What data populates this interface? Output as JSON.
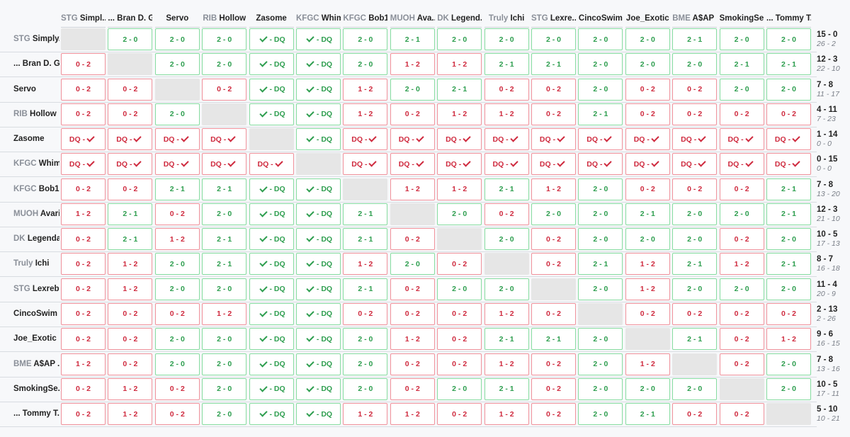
{
  "players": [
    {
      "tag": "STG",
      "name": "Simply...",
      "col_tag": "STG",
      "col_name": "Simpl...",
      "record": "15 - 0",
      "games": "26 - 2"
    },
    {
      "tag": "",
      "name": "... Bran D. G...",
      "col_tag": "",
      "col_name": "... Bran D. G...",
      "record": "12 - 3",
      "games": "22 - 10"
    },
    {
      "tag": "",
      "name": "Servo",
      "col_tag": "",
      "col_name": "Servo",
      "record": "7 - 8",
      "games": "11 - 17"
    },
    {
      "tag": "RIB",
      "name": "Hollow",
      "col_tag": "RIB",
      "col_name": "Hollow",
      "record": "4 - 11",
      "games": "7 - 23"
    },
    {
      "tag": "",
      "name": "Zasome",
      "col_tag": "",
      "col_name": "Zasome",
      "record": "1 - 14",
      "games": "0 - 0"
    },
    {
      "tag": "KFGC",
      "name": "Whim",
      "col_tag": "KFGC",
      "col_name": "Whim",
      "record": "0 - 15",
      "games": "0 - 0"
    },
    {
      "tag": "KFGC",
      "name": "Bob1...",
      "col_tag": "KFGC",
      "col_name": "Bob1...",
      "record": "7 - 8",
      "games": "13 - 20"
    },
    {
      "tag": "MUOH",
      "name": "Avaris",
      "col_tag": "MUOH",
      "col_name": "Ava...",
      "record": "12 - 3",
      "games": "21 - 10"
    },
    {
      "tag": "DK",
      "name": "Legenda...",
      "col_tag": "DK",
      "col_name": "Legend...",
      "record": "10 - 5",
      "games": "17 - 13"
    },
    {
      "tag": "Truly",
      "name": "Ichi",
      "col_tag": "Truly",
      "col_name": "Ichi",
      "record": "8 - 7",
      "games": "16 - 18"
    },
    {
      "tag": "STG",
      "name": "Lexreb...",
      "col_tag": "STG",
      "col_name": "Lexre...",
      "record": "11 - 4",
      "games": "20 - 9"
    },
    {
      "tag": "",
      "name": "CincoSwim",
      "col_tag": "",
      "col_name": "CincoSwim",
      "record": "2 - 13",
      "games": "2 - 26"
    },
    {
      "tag": "",
      "name": "Joe_Exotic",
      "col_tag": "",
      "col_name": "Joe_Exotic",
      "record": "9 - 6",
      "games": "16 - 15"
    },
    {
      "tag": "BME",
      "name": "A$AP ...",
      "col_tag": "BME",
      "col_name": "A$AP ...",
      "record": "7 - 8",
      "games": "13 - 16"
    },
    {
      "tag": "",
      "name": "SmokingSe...",
      "col_tag": "",
      "col_name": "SmokingSe...",
      "record": "10 - 5",
      "games": "17 - 11"
    },
    {
      "tag": "",
      "name": "... Tommy T...",
      "col_tag": "",
      "col_name": "... Tommy T...",
      "record": "5 - 10",
      "games": "10 - 21"
    }
  ],
  "results": [
    [
      "-",
      "2 - 0",
      "2 - 0",
      "2 - 0",
      "W-DQ",
      "W-DQ",
      "2 - 0",
      "2 - 1",
      "2 - 0",
      "2 - 0",
      "2 - 0",
      "2 - 0",
      "2 - 0",
      "2 - 1",
      "2 - 0",
      "2 - 0"
    ],
    [
      "0 - 2",
      "-",
      "2 - 0",
      "2 - 0",
      "W-DQ",
      "W-DQ",
      "2 - 0",
      "1 - 2",
      "1 - 2",
      "2 - 1",
      "2 - 1",
      "2 - 0",
      "2 - 0",
      "2 - 0",
      "2 - 1",
      "2 - 1"
    ],
    [
      "0 - 2",
      "0 - 2",
      "-",
      "0 - 2",
      "W-DQ",
      "W-DQ",
      "1 - 2",
      "2 - 0",
      "2 - 1",
      "0 - 2",
      "0 - 2",
      "2 - 0",
      "0 - 2",
      "0 - 2",
      "2 - 0",
      "2 - 0"
    ],
    [
      "0 - 2",
      "0 - 2",
      "2 - 0",
      "-",
      "W-DQ",
      "W-DQ",
      "1 - 2",
      "0 - 2",
      "1 - 2",
      "1 - 2",
      "0 - 2",
      "2 - 1",
      "0 - 2",
      "0 - 2",
      "0 - 2",
      "0 - 2"
    ],
    [
      "DQ-L",
      "DQ-L",
      "DQ-L",
      "DQ-L",
      "-",
      "W-DQ",
      "DQ-L",
      "DQ-L",
      "DQ-L",
      "DQ-L",
      "DQ-L",
      "DQ-L",
      "DQ-L",
      "DQ-L",
      "DQ-L",
      "DQ-L"
    ],
    [
      "DQ-L",
      "DQ-L",
      "DQ-L",
      "DQ-L",
      "DQ-L",
      "-",
      "DQ-L",
      "DQ-L",
      "DQ-L",
      "DQ-L",
      "DQ-L",
      "DQ-L",
      "DQ-L",
      "DQ-L",
      "DQ-L",
      "DQ-L"
    ],
    [
      "0 - 2",
      "0 - 2",
      "2 - 1",
      "2 - 1",
      "W-DQ",
      "W-DQ",
      "-",
      "1 - 2",
      "1 - 2",
      "2 - 1",
      "1 - 2",
      "2 - 0",
      "0 - 2",
      "0 - 2",
      "0 - 2",
      "2 - 1"
    ],
    [
      "1 - 2",
      "2 - 1",
      "0 - 2",
      "2 - 0",
      "W-DQ",
      "W-DQ",
      "2 - 1",
      "-",
      "2 - 0",
      "0 - 2",
      "2 - 0",
      "2 - 0",
      "2 - 1",
      "2 - 0",
      "2 - 0",
      "2 - 1"
    ],
    [
      "0 - 2",
      "2 - 1",
      "1 - 2",
      "2 - 1",
      "W-DQ",
      "W-DQ",
      "2 - 1",
      "0 - 2",
      "-",
      "2 - 0",
      "0 - 2",
      "2 - 0",
      "2 - 0",
      "2 - 0",
      "0 - 2",
      "2 - 0"
    ],
    [
      "0 - 2",
      "1 - 2",
      "2 - 0",
      "2 - 1",
      "W-DQ",
      "W-DQ",
      "1 - 2",
      "2 - 0",
      "0 - 2",
      "-",
      "0 - 2",
      "2 - 1",
      "1 - 2",
      "2 - 1",
      "1 - 2",
      "2 - 1"
    ],
    [
      "0 - 2",
      "1 - 2",
      "2 - 0",
      "2 - 0",
      "W-DQ",
      "W-DQ",
      "2 - 1",
      "0 - 2",
      "2 - 0",
      "2 - 0",
      "-",
      "2 - 0",
      "1 - 2",
      "2 - 0",
      "2 - 0",
      "2 - 0"
    ],
    [
      "0 - 2",
      "0 - 2",
      "0 - 2",
      "1 - 2",
      "W-DQ",
      "W-DQ",
      "0 - 2",
      "0 - 2",
      "0 - 2",
      "1 - 2",
      "0 - 2",
      "-",
      "0 - 2",
      "0 - 2",
      "0 - 2",
      "0 - 2"
    ],
    [
      "0 - 2",
      "0 - 2",
      "2 - 0",
      "2 - 0",
      "W-DQ",
      "W-DQ",
      "2 - 0",
      "1 - 2",
      "0 - 2",
      "2 - 1",
      "2 - 1",
      "2 - 0",
      "-",
      "2 - 1",
      "0 - 2",
      "1 - 2"
    ],
    [
      "1 - 2",
      "0 - 2",
      "2 - 0",
      "2 - 0",
      "W-DQ",
      "W-DQ",
      "2 - 0",
      "0 - 2",
      "0 - 2",
      "1 - 2",
      "0 - 2",
      "2 - 0",
      "1 - 2",
      "-",
      "0 - 2",
      "2 - 0"
    ],
    [
      "0 - 2",
      "1 - 2",
      "0 - 2",
      "2 - 0",
      "W-DQ",
      "W-DQ",
      "2 - 0",
      "0 - 2",
      "2 - 0",
      "2 - 1",
      "0 - 2",
      "2 - 0",
      "2 - 0",
      "2 - 0",
      "-",
      "2 - 0"
    ],
    [
      "0 - 2",
      "1 - 2",
      "0 - 2",
      "2 - 0",
      "W-DQ",
      "W-DQ",
      "1 - 2",
      "1 - 2",
      "0 - 2",
      "1 - 2",
      "0 - 2",
      "2 - 0",
      "2 - 1",
      "0 - 2",
      "0 - 2",
      "-"
    ]
  ],
  "labels": {
    "dq": "DQ"
  },
  "colors": {
    "win_border": "#86dca0",
    "win_text": "#2e9e4f",
    "loss_border": "#f0919b",
    "loss_text": "#cf2b3f",
    "self_cell": "#e6e6e6",
    "tag_text": "#8a8f98"
  },
  "icons": {
    "win_dq": "check-icon",
    "loss_dq": "check-icon"
  }
}
